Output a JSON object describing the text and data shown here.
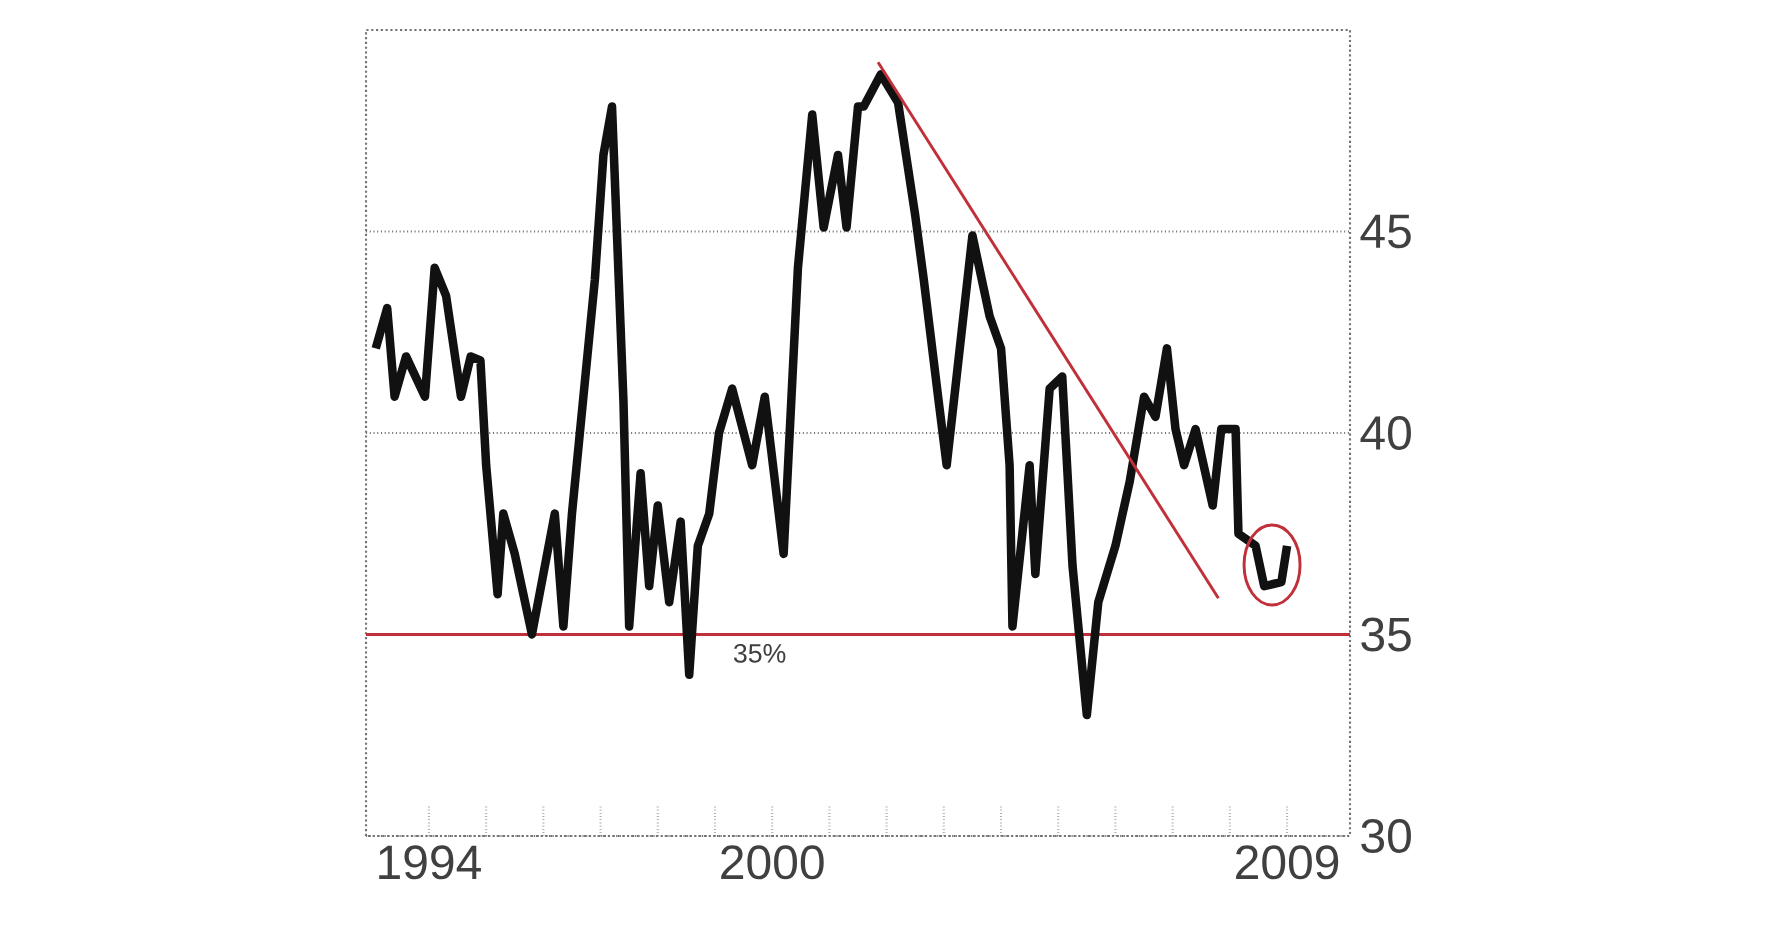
{
  "chart_data": {
    "type": "line",
    "xlim": [
      1992.9,
      2010.1
    ],
    "ylim": [
      30,
      50
    ],
    "xticks": [
      {
        "value": 1994,
        "label": "1994"
      },
      {
        "value": 1995,
        "label": null
      },
      {
        "value": 1996,
        "label": null
      },
      {
        "value": 1997,
        "label": null
      },
      {
        "value": 1998,
        "label": null
      },
      {
        "value": 1999,
        "label": null
      },
      {
        "value": 2000,
        "label": "2000"
      },
      {
        "value": 2001,
        "label": null
      },
      {
        "value": 2002,
        "label": null
      },
      {
        "value": 2003,
        "label": null
      },
      {
        "value": 2004,
        "label": null
      },
      {
        "value": 2005,
        "label": null
      },
      {
        "value": 2006,
        "label": null
      },
      {
        "value": 2007,
        "label": null
      },
      {
        "value": 2008,
        "label": null
      },
      {
        "value": 2009,
        "label": "2009"
      }
    ],
    "yticks": [
      30,
      35,
      40,
      45
    ],
    "grid": "y",
    "series": [
      {
        "color": "#111111",
        "x": [
          1993.07,
          1993.27,
          1993.4,
          1993.6,
          1993.93,
          1994.1,
          1994.3,
          1994.56,
          1994.73,
          1994.9,
          1995.0,
          1995.2,
          1995.3,
          1995.5,
          1995.8,
          1996.2,
          1996.35,
          1996.5,
          1996.7,
          1996.9,
          1997.05,
          1997.2,
          1997.4,
          1997.5,
          1997.7,
          1997.85,
          1998.0,
          1998.2,
          1998.4,
          1998.55,
          1998.7,
          1998.9,
          1999.07,
          1999.3,
          1999.65,
          1999.87,
          2000.2,
          2000.45,
          2000.7,
          2000.9,
          2001.15,
          2001.3,
          2001.5,
          2001.6,
          2001.9,
          2002.2,
          2002.5,
          2002.65,
          2002.9,
          2003.05,
          2003.5,
          2003.8,
          2004.0,
          2004.15,
          2004.2,
          2004.5,
          2004.6,
          2004.85,
          2005.07,
          2005.25,
          2005.5,
          2005.7,
          2006.0,
          2006.25,
          2006.5,
          2006.7,
          2006.9,
          2007.05,
          2007.2,
          2007.4,
          2007.7,
          2007.85,
          2008.1,
          2008.15,
          2008.45,
          2008.6,
          2008.9,
          2009.0
        ],
        "values": [
          42.1,
          43.1,
          40.9,
          41.9,
          40.9,
          44.1,
          43.4,
          40.9,
          41.9,
          41.8,
          39.2,
          36.0,
          38.0,
          37.0,
          35.0,
          38.0,
          35.2,
          38.0,
          40.9,
          43.8,
          46.9,
          48.1,
          40.8,
          35.2,
          39.0,
          36.2,
          38.2,
          35.8,
          37.8,
          34.0,
          37.2,
          38.0,
          40.0,
          41.1,
          39.2,
          40.9,
          37.0,
          44.1,
          47.9,
          45.1,
          46.9,
          45.1,
          48.1,
          48.1,
          48.9,
          48.2,
          45.4,
          43.8,
          40.9,
          39.2,
          44.9,
          42.9,
          42.1,
          39.2,
          35.2,
          39.2,
          36.5,
          41.1,
          41.4,
          36.7,
          33.0,
          35.8,
          37.2,
          38.8,
          40.9,
          40.4,
          42.1,
          40.1,
          39.2,
          40.1,
          38.2,
          40.1,
          40.1,
          37.5,
          37.2,
          36.2,
          36.3,
          37.2
        ]
      },
      {
        "type": "line",
        "color": "#c0303a",
        "x": [
          2001.85,
          2007.8
        ],
        "values": [
          49.2,
          35.9
        ]
      }
    ],
    "ref_lines": [
      {
        "axis": "y",
        "value": 35,
        "label": "35%",
        "color": "#c0303a"
      }
    ]
  }
}
